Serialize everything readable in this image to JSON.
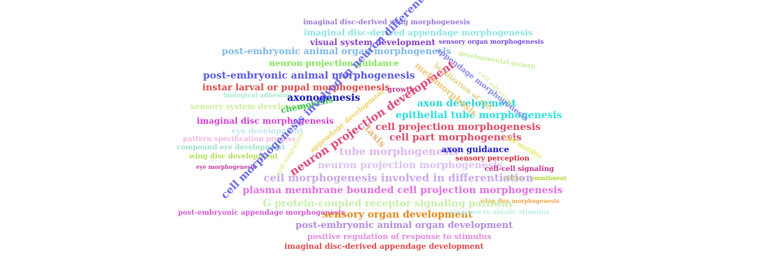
{
  "words": [
    {
      "text": "imaginal disc-derived wing morphogenesis",
      "color": "#9e7ad6"
    },
    {
      "text": "imaginal disc-derived appendage morphogenesis",
      "color": "#8ee3e3"
    },
    {
      "text": "visual system development",
      "color": "#8a3fc7"
    },
    {
      "text": "sensory organ morphogenesis",
      "color": "#7a4ad9"
    },
    {
      "text": "post-embryonic animal organ morphogenesis",
      "color": "#7fb8ea"
    },
    {
      "text": "neuron projection guidance",
      "color": "#84e25a"
    },
    {
      "text": "post-embryonic animal morphogenesis",
      "color": "#5a58e0"
    },
    {
      "text": "instar larval or pupal morphogenesis",
      "color": "#e04a4a"
    },
    {
      "text": "growth",
      "color": "#c4318a"
    },
    {
      "text": "biological adhesion",
      "color": "#a8e8d0"
    },
    {
      "text": "axonogenesis",
      "color": "#1018b8"
    },
    {
      "text": "sensory system development",
      "color": "#c8ee9a"
    },
    {
      "text": "chemotaxis",
      "color": "#45c45a"
    },
    {
      "text": "axon development",
      "color": "#2ad6d6"
    },
    {
      "text": "epithelial tube morphogenesis",
      "color": "#2be0e0"
    },
    {
      "text": "imaginal disc morphogenesis",
      "color": "#d13fd1"
    },
    {
      "text": "eye development",
      "color": "#bfe6ee"
    },
    {
      "text": "cell projection morphogenesis",
      "color": "#e04a64"
    },
    {
      "text": "pattern specification process",
      "color": "#f4b6e0"
    },
    {
      "text": "cell part morphogenesis",
      "color": "#d94a6a"
    },
    {
      "text": "compound eye development",
      "color": "#a0e0c4"
    },
    {
      "text": "tube morphogenesis",
      "color": "#e0b6ee"
    },
    {
      "text": "axon guidance",
      "color": "#1818c4"
    },
    {
      "text": "wing disc development",
      "color": "#b2e05a"
    },
    {
      "text": "sensory perception",
      "color": "#d02a3a"
    },
    {
      "text": "eye morphogenesis",
      "color": "#c03aa0"
    },
    {
      "text": "neuron projection morphogenesis",
      "color": "#dcc0f0"
    },
    {
      "text": "cell-cell signaling",
      "color": "#c4318a"
    },
    {
      "text": "cell fate commitment",
      "color": "#a8d82a"
    },
    {
      "text": "cell morphogenesis involved in differentiation",
      "color": "#c9a8ea"
    },
    {
      "text": "plasma membrane bounded cell projection morphogenesis",
      "color": "#e16fe0"
    },
    {
      "text": "wing disc morphogenesis",
      "color": "#f0a24a"
    },
    {
      "text": "G protein-coupled receptor signaling pathway",
      "color": "#c8eeaa"
    },
    {
      "text": "post-embryonic appendage morphogenesis",
      "color": "#d45ad4"
    },
    {
      "text": "sensory organ development",
      "color": "#e0891a"
    },
    {
      "text": "response to abiotic stimulus",
      "color": "#bfeee8"
    },
    {
      "text": "post-embryonic animal organ development",
      "color": "#b48ae0"
    },
    {
      "text": "positive regulation of response to stimulus",
      "color": "#e08ae0"
    },
    {
      "text": "imaginal disc-derived appendage development",
      "color": "#e04a4a"
    },
    {
      "text": "cell morphogenesis involved in neuron differentiation",
      "color": "#6a6ae8"
    },
    {
      "text": "neuron projection development",
      "color": "#e0487a"
    },
    {
      "text": "appendage development",
      "color": "#f0d06a"
    },
    {
      "text": "cell migration",
      "color": "#e6ee9a"
    },
    {
      "text": "taxis",
      "color": "#e0b87a"
    },
    {
      "text": "appendage morphogenesis",
      "color": "#8a8ae8"
    },
    {
      "text": "metamorphosis",
      "color": "#f0c87a"
    },
    {
      "text": "localization of cell",
      "color": "#e0d07a"
    },
    {
      "text": "developmental growth",
      "color": "#c8ee9a"
    },
    {
      "text": "cell adhesion",
      "color": "#ddf0b0"
    },
    {
      "text": "cell motility",
      "color": "#e6e85a"
    }
  ]
}
